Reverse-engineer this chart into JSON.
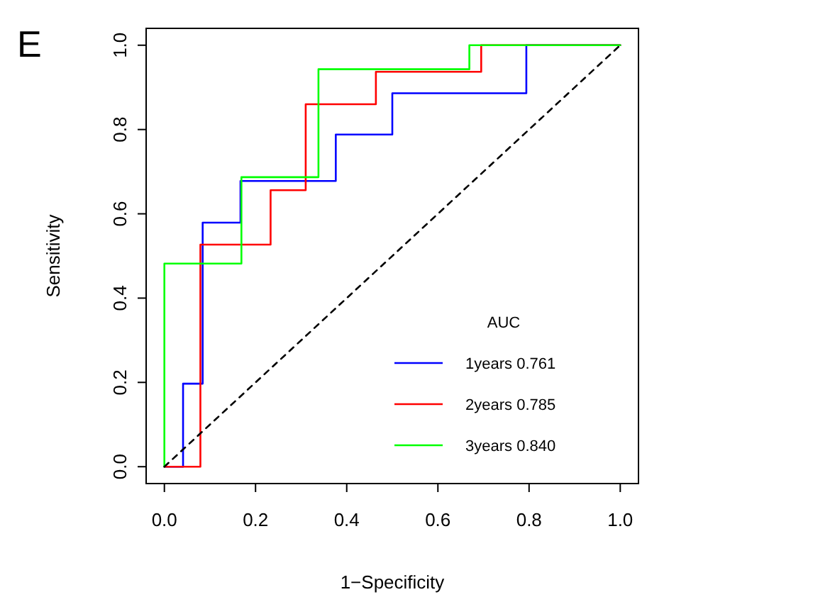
{
  "chart_data": {
    "type": "line",
    "xlabel": "1−Specificity",
    "ylabel": "Sensitivity",
    "legend_title": "AUC",
    "legend": "bottom right",
    "grid": false,
    "marker": "none",
    "xlim": [
      -0.04,
      1.04
    ],
    "ylim": [
      -0.04,
      1.04
    ],
    "xticks": [
      {
        "value": 0,
        "label": "0.0"
      },
      0.2,
      0.4,
      0.6,
      0.8,
      {
        "value": 1,
        "label": "1.0"
      }
    ],
    "yticks": [
      {
        "value": 0,
        "label": "0.0"
      },
      0.2,
      0.4,
      0.6,
      0.8,
      {
        "value": 1,
        "label": "1.0"
      }
    ],
    "annotations": [
      "E"
    ],
    "series": [
      {
        "name": "1years 0.761",
        "color": "#0000ff",
        "line_style": "solid",
        "x": [
          0,
          0.041,
          0.041,
          0.084,
          0.084,
          0.167,
          0.167,
          0.376,
          0.376,
          0.5,
          0.5,
          0.794,
          0.794,
          1
        ],
        "values": [
          0,
          0,
          0.197,
          0.197,
          0.579,
          0.579,
          0.678,
          0.678,
          0.788,
          0.788,
          0.886,
          0.886,
          1,
          1
        ]
      },
      {
        "name": "2years 0.785",
        "color": "#ff0000",
        "line_style": "solid",
        "x": [
          0,
          0.079,
          0.079,
          0.233,
          0.233,
          0.31,
          0.31,
          0.464,
          0.464,
          0.695,
          0.695,
          1
        ],
        "values": [
          0,
          0,
          0.527,
          0.527,
          0.656,
          0.656,
          0.86,
          0.86,
          0.937,
          0.937,
          1,
          1
        ]
      },
      {
        "name": "3years 0.840",
        "color": "#00ff00",
        "line_style": "solid",
        "x": [
          0,
          0,
          0.169,
          0.169,
          0.338,
          0.338,
          0.669,
          0.669,
          1
        ],
        "values": [
          0,
          0.482,
          0.482,
          0.687,
          0.687,
          0.943,
          0.943,
          1,
          1
        ]
      },
      {
        "color": "#000000",
        "line_style": "dashed",
        "x": [
          0,
          1
        ],
        "values": [
          0,
          1
        ]
      }
    ]
  }
}
